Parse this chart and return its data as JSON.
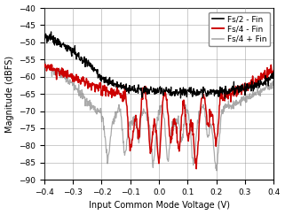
{
  "title": "",
  "xlabel": "Input Common Mode Voltage (V)",
  "ylabel": "Magnitude (dBFS)",
  "xlim": [
    -0.4,
    0.4
  ],
  "ylim": [
    -90,
    -40
  ],
  "yticks": [
    -90,
    -85,
    -80,
    -75,
    -70,
    -65,
    -60,
    -55,
    -50,
    -45,
    -40
  ],
  "xticks": [
    -0.4,
    -0.3,
    -0.2,
    -0.1,
    0.0,
    0.1,
    0.2,
    0.3,
    0.4
  ],
  "legend": [
    {
      "label": "Fs/2 - Fin",
      "color": "#000000",
      "lw": 0.9
    },
    {
      "label": "Fs/4 - Fin",
      "color": "#cc0000",
      "lw": 1.1
    },
    {
      "label": "Fs/4 + Fin",
      "color": "#aaaaaa",
      "lw": 0.9
    }
  ],
  "grid_color": "#888888",
  "bg_color": "#ffffff",
  "font_size": 7,
  "legend_font_size": 6.5,
  "black_base_x": [
    -0.4,
    -0.38,
    -0.35,
    -0.3,
    -0.25,
    -0.22,
    -0.2,
    -0.17,
    -0.15,
    -0.12,
    -0.1,
    -0.05,
    0.0,
    0.05,
    0.1,
    0.15,
    0.2,
    0.25,
    0.3,
    0.35,
    0.4
  ],
  "black_base_y": [
    -48.0,
    -48.5,
    -50.0,
    -52.5,
    -56.0,
    -58.5,
    -60.5,
    -61.5,
    -62.5,
    -63.0,
    -63.5,
    -64.0,
    -64.0,
    -64.5,
    -64.5,
    -64.5,
    -64.5,
    -64.0,
    -63.5,
    -62.0,
    -60.0
  ],
  "red_base_x": [
    -0.4,
    -0.38,
    -0.35,
    -0.3,
    -0.25,
    -0.2,
    -0.17,
    -0.15,
    -0.12,
    -0.1,
    0.0,
    0.1,
    0.15,
    0.2,
    0.25,
    0.3,
    0.35,
    0.4
  ],
  "red_base_y": [
    -57.0,
    -57.5,
    -58.5,
    -60.0,
    -62.0,
    -63.5,
    -64.5,
    -65.0,
    -65.5,
    -66.0,
    -68.0,
    -68.0,
    -67.5,
    -67.0,
    -65.0,
    -63.0,
    -60.5,
    -58.0
  ],
  "gray_base_x": [
    -0.4,
    -0.38,
    -0.35,
    -0.3,
    -0.27,
    -0.25,
    -0.22,
    -0.2,
    -0.18,
    -0.15,
    -0.1,
    0.0,
    0.1,
    0.15,
    0.2,
    0.25,
    0.3,
    0.35,
    0.4
  ],
  "gray_base_y": [
    -57.0,
    -57.5,
    -59.0,
    -62.0,
    -65.0,
    -67.5,
    -69.5,
    -71.0,
    -72.0,
    -71.5,
    -71.0,
    -71.5,
    -71.0,
    -70.5,
    -70.0,
    -68.5,
    -66.5,
    -64.5,
    -62.0
  ],
  "red_dips_x": [
    -0.1,
    -0.07,
    -0.03,
    0.0,
    0.04,
    0.07,
    0.1,
    0.13,
    0.17,
    0.2
  ],
  "red_dips_depth": [
    14,
    10,
    12,
    16,
    9,
    13,
    11,
    15,
    8,
    10
  ],
  "red_dips_w": [
    0.008,
    0.006,
    0.007,
    0.007,
    0.006,
    0.007,
    0.007,
    0.008,
    0.006,
    0.007
  ],
  "gray_dips_x": [
    -0.18,
    -0.12,
    -0.07,
    -0.02,
    0.03,
    0.08,
    0.12,
    0.17,
    0.2
  ],
  "gray_dips_depth": [
    10,
    12,
    9,
    11,
    13,
    10,
    12,
    9,
    14
  ],
  "gray_dips_w": [
    0.008,
    0.007,
    0.006,
    0.007,
    0.007,
    0.006,
    0.007,
    0.006,
    0.009
  ]
}
